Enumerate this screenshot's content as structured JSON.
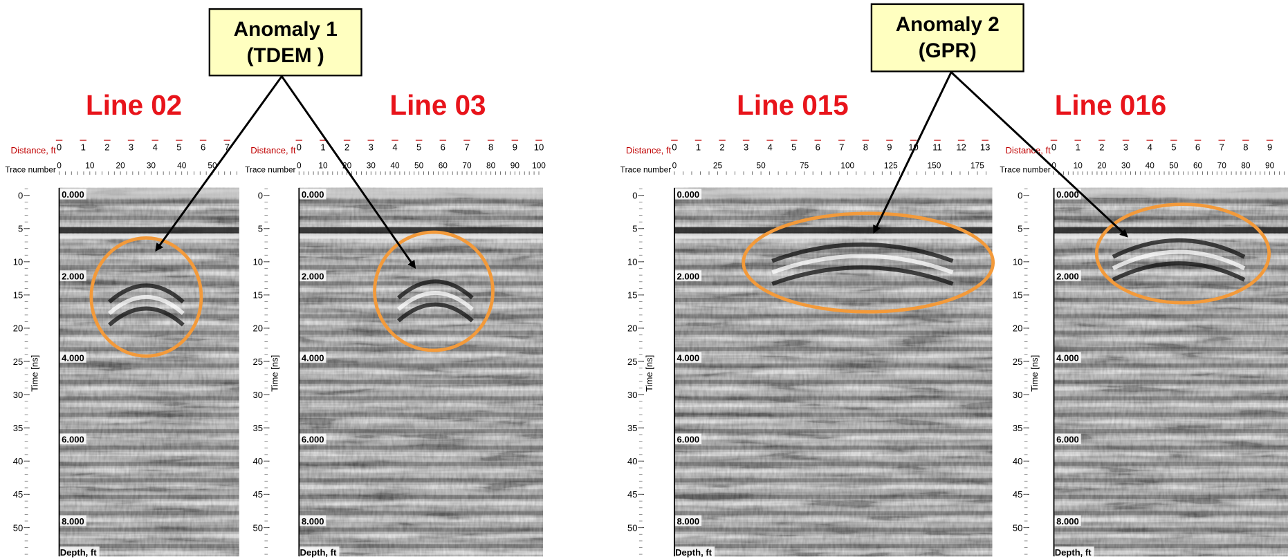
{
  "callouts": [
    {
      "lines": [
        "Anomaly 1",
        "(TDEM )"
      ]
    },
    {
      "lines": [
        "Anomaly 2",
        "(GPR)"
      ]
    }
  ],
  "panels": [
    {
      "title": "Line 02",
      "distance_label": "Distance, ft",
      "trace_label": "Trace number",
      "distance_ticks": [
        0,
        1,
        2,
        3,
        4,
        5,
        6,
        7
      ],
      "trace_ticks": [
        0,
        10,
        20,
        30,
        40,
        50
      ],
      "time_label": "Time [ns]",
      "time_ticks": [
        0,
        5,
        10,
        15,
        20,
        25,
        30,
        35,
        40,
        45,
        50
      ],
      "depth_ticks": [
        "0.000",
        "2.000",
        "4.000",
        "6.000",
        "8.000"
      ],
      "depth_label": "Depth, ft"
    },
    {
      "title": "Line 03",
      "distance_label": "Distance, ft",
      "trace_label": "Trace number",
      "distance_ticks": [
        0,
        1,
        2,
        3,
        4,
        5,
        6,
        7,
        8,
        9,
        10
      ],
      "trace_ticks": [
        0,
        10,
        20,
        30,
        40,
        50,
        60,
        70,
        80,
        90,
        100
      ],
      "time_label": "Time [ns]",
      "time_ticks": [
        0,
        5,
        10,
        15,
        20,
        25,
        30,
        35,
        40,
        45,
        50
      ],
      "depth_ticks": [
        "0.000",
        "2.000",
        "4.000",
        "6.000",
        "8.000"
      ],
      "depth_label": "Depth, ft"
    },
    {
      "title": "Line 015",
      "distance_label": "Distance, ft",
      "trace_label": "Trace number",
      "distance_ticks": [
        0,
        1,
        2,
        3,
        4,
        5,
        6,
        7,
        8,
        9,
        10,
        11,
        12,
        13
      ],
      "trace_ticks": [
        0,
        25,
        50,
        75,
        100,
        125,
        150,
        175
      ],
      "time_label": "Time [ns]",
      "time_ticks": [
        0,
        5,
        10,
        15,
        20,
        25,
        30,
        35,
        40,
        45,
        50
      ],
      "depth_ticks": [
        "0.000",
        "2.000",
        "4.000",
        "6.000",
        "8.000"
      ],
      "depth_label": "Depth, ft"
    },
    {
      "title": "Line 016",
      "distance_label": "Distance, ft",
      "trace_label": "Trace number",
      "distance_ticks": [
        0,
        1,
        2,
        3,
        4,
        5,
        6,
        7,
        8,
        9
      ],
      "trace_ticks": [
        0,
        10,
        20,
        30,
        40,
        50,
        60,
        70,
        80,
        90
      ],
      "time_label": "Time [ns]",
      "time_ticks": [
        0,
        5,
        10,
        15,
        20,
        25,
        30,
        35,
        40,
        45,
        50
      ],
      "depth_ticks": [
        "0.000",
        "2.000",
        "4.000",
        "6.000",
        "8.000"
      ],
      "depth_label": "Depth, ft"
    }
  ]
}
